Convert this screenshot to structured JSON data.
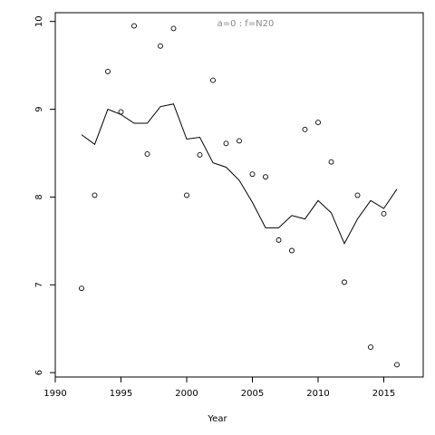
{
  "chart_data": {
    "type": "scatter",
    "annotation": "a=0  :  f=N20",
    "x_label": "Year",
    "x": [
      1992,
      1993,
      1994,
      1995,
      1996,
      1997,
      1998,
      1999,
      2000,
      2001,
      2002,
      2003,
      2004,
      2005,
      2006,
      2007,
      2008,
      2009,
      2010,
      2011,
      2012,
      2013,
      2014,
      2015,
      2016
    ],
    "series": [
      {
        "style": "points",
        "color": "#000000",
        "values": [
          6.96,
          8.02,
          9.43,
          8.97,
          9.95,
          8.49,
          9.72,
          9.92,
          8.02,
          8.48,
          9.33,
          8.61,
          8.64,
          8.26,
          8.23,
          7.51,
          7.39,
          8.77,
          8.85,
          8.4,
          7.03,
          8.02,
          6.29,
          7.81,
          6.09
        ]
      },
      {
        "style": "line",
        "color": "#000000",
        "values": [
          8.71,
          8.6,
          9.0,
          8.94,
          8.84,
          8.84,
          9.03,
          9.06,
          8.66,
          8.68,
          8.39,
          8.34,
          8.19,
          7.94,
          7.65,
          7.65,
          7.79,
          7.75,
          7.96,
          7.82,
          7.47,
          7.75,
          7.96,
          7.87,
          8.09
        ]
      }
    ],
    "xlim": [
      1990,
      2018
    ],
    "xticks": [
      1990,
      1995,
      2000,
      2005,
      2010,
      2015
    ],
    "ylim": [
      5.95,
      10.1
    ],
    "yticks": [
      6,
      7,
      8,
      9,
      10
    ]
  }
}
